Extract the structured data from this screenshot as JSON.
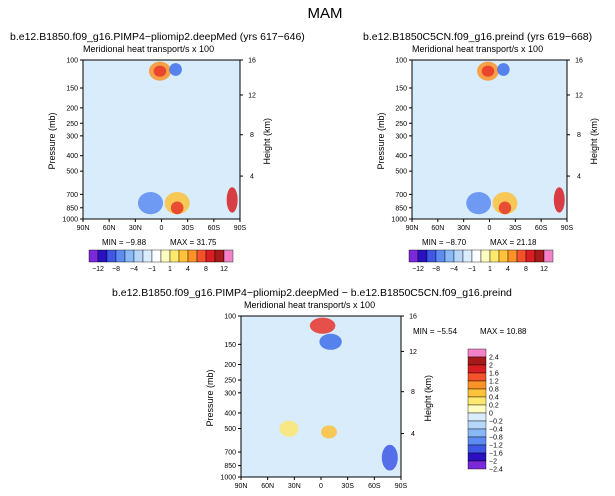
{
  "figure": {
    "title": "MAM"
  },
  "colorbar_horizontal": {
    "labels": [
      "−12",
      "−8",
      "−4",
      "−1",
      "1",
      "4",
      "8",
      "12"
    ],
    "colors": [
      "#7a28d8",
      "#2a10c0",
      "#3e58e6",
      "#5c8cf2",
      "#88b8f6",
      "#b6d6fa",
      "#d8ecfc",
      "#ffffff",
      "#fefcc0",
      "#fee870",
      "#fdc238",
      "#fb9328",
      "#f4522a",
      "#d81e22",
      "#a51a1a",
      "#f482c8"
    ]
  },
  "colorbar_vertical": {
    "labels": [
      "2.4",
      "2",
      "1.6",
      "1.2",
      "0.8",
      "0.4",
      "0.2",
      "0",
      "−0.2",
      "−0.4",
      "−0.8",
      "−1.2",
      "−1.6",
      "−2",
      "−2.4"
    ],
    "colors": [
      "#f482c8",
      "#a51a1a",
      "#d81e22",
      "#f4522a",
      "#fb9328",
      "#fdc238",
      "#fee870",
      "#fefcc0",
      "#d8ecfc",
      "#b6d6fa",
      "#88b8f6",
      "#5c8cf2",
      "#3e58e6",
      "#2a10c0",
      "#7a28d8"
    ]
  },
  "chart_data": [
    {
      "type": "heatmap",
      "title": "b.e12.B1850.f09_g16.PIMP4−pliomip2.deepMed (yrs 617−646)",
      "subtitle": "Meridional heat transport/s x 100",
      "xlabel": "",
      "ylabel": "Pressure (mb)",
      "ylabel_right": "Height (km)",
      "x_ticks": [
        "90N",
        "60N",
        "30N",
        "0",
        "30S",
        "60S",
        "90S"
      ],
      "y_ticks": [
        "100",
        "150",
        "200",
        "250",
        "300",
        "400",
        "500",
        "700",
        "850",
        "1000"
      ],
      "y_right_ticks": [
        "16",
        "12",
        "8",
        "4"
      ],
      "min_label": "MIN =    −9.88",
      "max_label": "MAX =   31.75",
      "min": -9.88,
      "max": 31.75
    },
    {
      "type": "heatmap",
      "title": "b.e12.B1850C5CN.f09_g16.preind (yrs 619−668)",
      "subtitle": "Meridional heat transport/s x 100",
      "xlabel": "",
      "ylabel": "Pressure (mb)",
      "ylabel_right": "Height (km)",
      "x_ticks": [
        "90N",
        "60N",
        "30N",
        "0",
        "30S",
        "60S",
        "90S"
      ],
      "y_ticks": [
        "100",
        "150",
        "200",
        "250",
        "300",
        "400",
        "500",
        "700",
        "850",
        "1000"
      ],
      "y_right_ticks": [
        "16",
        "12",
        "8",
        "4"
      ],
      "min_label": "MIN =    −8.70",
      "max_label": "MAX =   21.18",
      "min": -8.7,
      "max": 21.18
    },
    {
      "type": "heatmap",
      "title": "b.e12.B1850.f09_g16.PIMP4−pliomip2.deepMed − b.e12.B1850C5CN.f09_g16.preind",
      "subtitle": "Meridional heat transport/s x 100",
      "xlabel": "",
      "ylabel": "Pressure (mb)",
      "ylabel_right": "Height (km)",
      "x_ticks": [
        "90N",
        "60N",
        "30N",
        "0",
        "30S",
        "60S",
        "90S"
      ],
      "y_ticks": [
        "100",
        "150",
        "200",
        "250",
        "300",
        "400",
        "500",
        "700",
        "850",
        "1000"
      ],
      "y_right_ticks": [
        "16",
        "12",
        "8",
        "4"
      ],
      "min_label": "MIN =    −5.54",
      "max_label": "MAX =   10.88",
      "min": -5.54,
      "max": 10.88
    }
  ]
}
